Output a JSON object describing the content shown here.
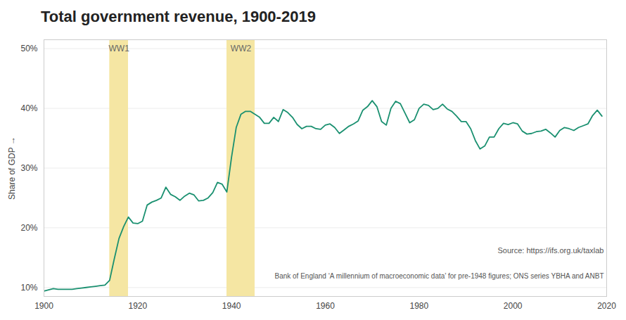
{
  "chart_data": {
    "type": "line",
    "title": "Total government revenue, 1900-2019",
    "y_label": "Share of GDP",
    "x": [
      1900,
      1901,
      1902,
      1903,
      1904,
      1905,
      1906,
      1907,
      1908,
      1909,
      1910,
      1911,
      1912,
      1913,
      1914,
      1915,
      1916,
      1917,
      1918,
      1919,
      1920,
      1921,
      1922,
      1923,
      1924,
      1925,
      1926,
      1927,
      1928,
      1929,
      1930,
      1931,
      1932,
      1933,
      1934,
      1935,
      1936,
      1937,
      1938,
      1939,
      1940,
      1941,
      1942,
      1943,
      1944,
      1945,
      1946,
      1947,
      1948,
      1949,
      1950,
      1951,
      1952,
      1953,
      1954,
      1955,
      1956,
      1957,
      1958,
      1959,
      1960,
      1961,
      1962,
      1963,
      1964,
      1965,
      1966,
      1967,
      1968,
      1969,
      1970,
      1971,
      1972,
      1973,
      1974,
      1975,
      1976,
      1977,
      1978,
      1979,
      1980,
      1981,
      1982,
      1983,
      1984,
      1985,
      1986,
      1987,
      1988,
      1989,
      1990,
      1991,
      1992,
      1993,
      1994,
      1995,
      1996,
      1997,
      1998,
      1999,
      2000,
      2001,
      2002,
      2003,
      2004,
      2005,
      2006,
      2007,
      2008,
      2009,
      2010,
      2011,
      2012,
      2013,
      2014,
      2015,
      2016,
      2017,
      2018,
      2019
    ],
    "values": [
      0.094,
      0.096,
      0.098,
      0.097,
      0.097,
      0.097,
      0.097,
      0.098,
      0.099,
      0.1,
      0.101,
      0.102,
      0.103,
      0.104,
      0.112,
      0.148,
      0.182,
      0.202,
      0.218,
      0.208,
      0.207,
      0.211,
      0.238,
      0.243,
      0.246,
      0.25,
      0.268,
      0.256,
      0.252,
      0.246,
      0.253,
      0.258,
      0.255,
      0.245,
      0.246,
      0.25,
      0.259,
      0.276,
      0.273,
      0.26,
      0.318,
      0.368,
      0.39,
      0.395,
      0.395,
      0.39,
      0.385,
      0.375,
      0.375,
      0.385,
      0.378,
      0.398,
      0.393,
      0.385,
      0.373,
      0.366,
      0.37,
      0.37,
      0.366,
      0.365,
      0.372,
      0.374,
      0.368,
      0.358,
      0.364,
      0.37,
      0.374,
      0.379,
      0.397,
      0.403,
      0.413,
      0.403,
      0.378,
      0.372,
      0.4,
      0.412,
      0.408,
      0.392,
      0.376,
      0.381,
      0.4,
      0.407,
      0.405,
      0.398,
      0.4,
      0.407,
      0.399,
      0.395,
      0.387,
      0.378,
      0.378,
      0.366,
      0.346,
      0.332,
      0.337,
      0.352,
      0.352,
      0.366,
      0.375,
      0.373,
      0.376,
      0.374,
      0.362,
      0.357,
      0.358,
      0.361,
      0.362,
      0.365,
      0.359,
      0.352,
      0.363,
      0.368,
      0.366,
      0.363,
      0.368,
      0.371,
      0.374,
      0.388,
      0.397,
      0.387
    ],
    "color": "#1a9070",
    "xlim": [
      1900,
      2020
    ],
    "xticks": [
      1900,
      1920,
      1940,
      1960,
      1980,
      2000,
      2020
    ],
    "ylim": [
      0.085,
      0.515
    ],
    "yticks": [
      {
        "value": 0.1,
        "label": "10%"
      },
      {
        "value": 0.2,
        "label": "20%"
      },
      {
        "value": 0.3,
        "label": "30%"
      },
      {
        "value": 0.4,
        "label": "40%"
      },
      {
        "value": 0.5,
        "label": "50%"
      }
    ],
    "grid": true,
    "shaded_regions": [
      {
        "x": [
          1914,
          1918
        ],
        "label": "WW1",
        "color": "#f5e6a3"
      },
      {
        "x": [
          1939,
          1945
        ],
        "label": "WW2",
        "color": "#f5e6a3"
      }
    ],
    "annotations": [
      "Source: https://ifs.org.uk/taxlab",
      "Bank of England ‘A millennium of macroeconomic data’ for pre-1948 figures; ONS series YBHA and ANBT"
    ]
  }
}
